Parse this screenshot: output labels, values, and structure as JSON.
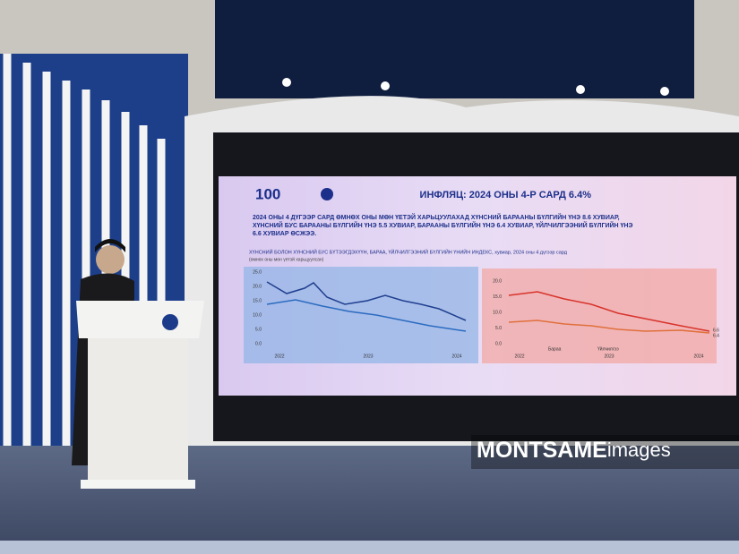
{
  "slide": {
    "title": "ИНФЛЯЦ: 2024 ОНЫ 4-Р САРД 6.4%",
    "logo_text": "100",
    "lead": [
      "2024 ОНЫ 4 ДҮГЭЭР САРД ӨМНӨХ ОНЫ МӨН ҮЕТЭЙ ХАРЬЦУУЛАХАД ХҮНСНИЙ БАРААНЫ БҮЛГИЙН ҮНЭ 8.6 ХУВИАР,",
      "ХҮНСНИЙ БУС БАРААНЫ БҮЛГИЙН ҮНЭ 5.5 ХУВИАР, БАРААНЫ БҮЛГИЙН ҮНЭ 6.4 ХУВИАР, ҮЙЛЧИЛГЭЭНИЙ БҮЛГИЙН ҮНЭ",
      "6.6 ХУВИАР ӨСЖЭЭ."
    ],
    "chart_title": "ХҮНСНИЙ БОЛОН ХҮНСНИЙ БУС БҮТЭЭГДЭХҮҮН, БАРАА, ҮЙЛЧИЛГЭЭНИЙ БҮЛГИЙН ҮНИЙН ИНДЕКС, хувиар, 2024 оны 4 дүгээр сард",
    "chart_note": "(өмнөх оны мөн үетэй харьцуулсан)",
    "left_chart": {
      "yticks": [
        "25.0",
        "20.0",
        "15.0",
        "10.0",
        "5.0",
        "0.0"
      ],
      "years": [
        "2022",
        "2023",
        "2024"
      ]
    },
    "right_chart": {
      "yticks": [
        "20.0",
        "15.0",
        "10.0",
        "5.0",
        "0.0"
      ],
      "years": [
        "2022",
        "2023",
        "2024"
      ],
      "legend": [
        "Бараа",
        "Үйлчилгээ"
      ],
      "end_labels": [
        "6.6",
        "6.4"
      ]
    }
  },
  "watermark": {
    "brand": "MONTSAME",
    "suffix": "images"
  }
}
